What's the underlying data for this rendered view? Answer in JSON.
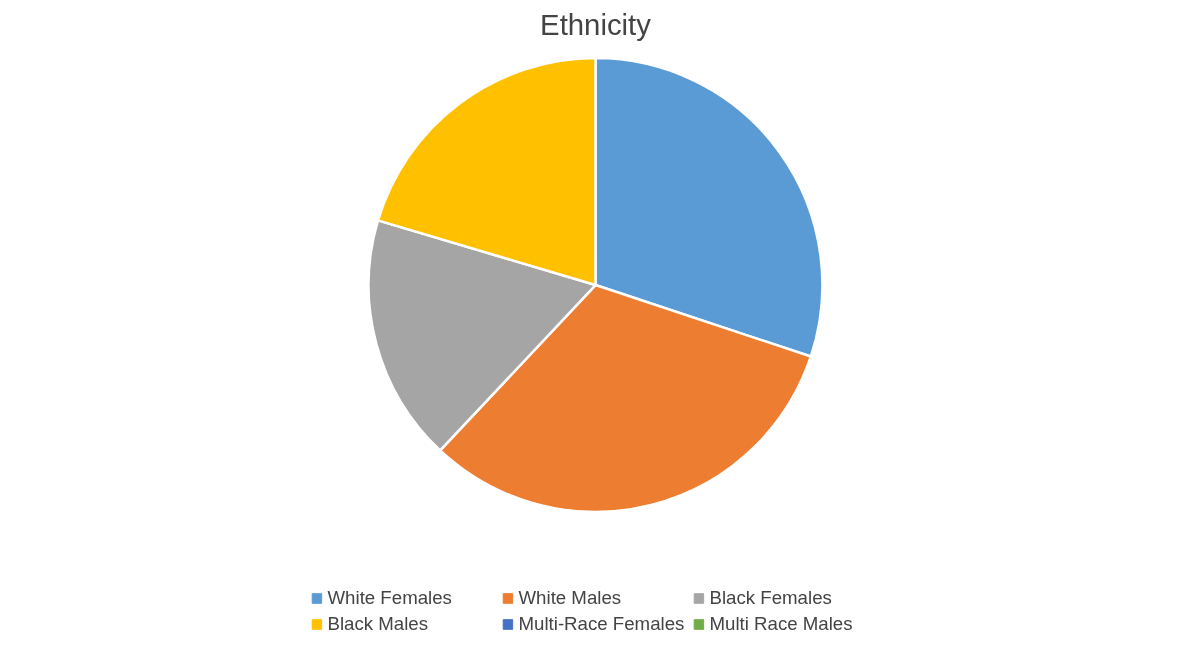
{
  "chart_data": {
    "type": "pie",
    "title": "Ethnicity",
    "categories": [
      "White Females",
      "White Males",
      "Black Females",
      "Black Males",
      "Multi-Race Females",
      "Multi Race Males"
    ],
    "values": [
      30.1,
      31.9,
      17.6,
      20.4,
      0,
      0
    ],
    "colors": [
      "#5b9bd5",
      "#ed7d31",
      "#a5a5a5",
      "#ffc000",
      "#4472c4",
      "#70ad47"
    ],
    "legend": "bottom"
  }
}
